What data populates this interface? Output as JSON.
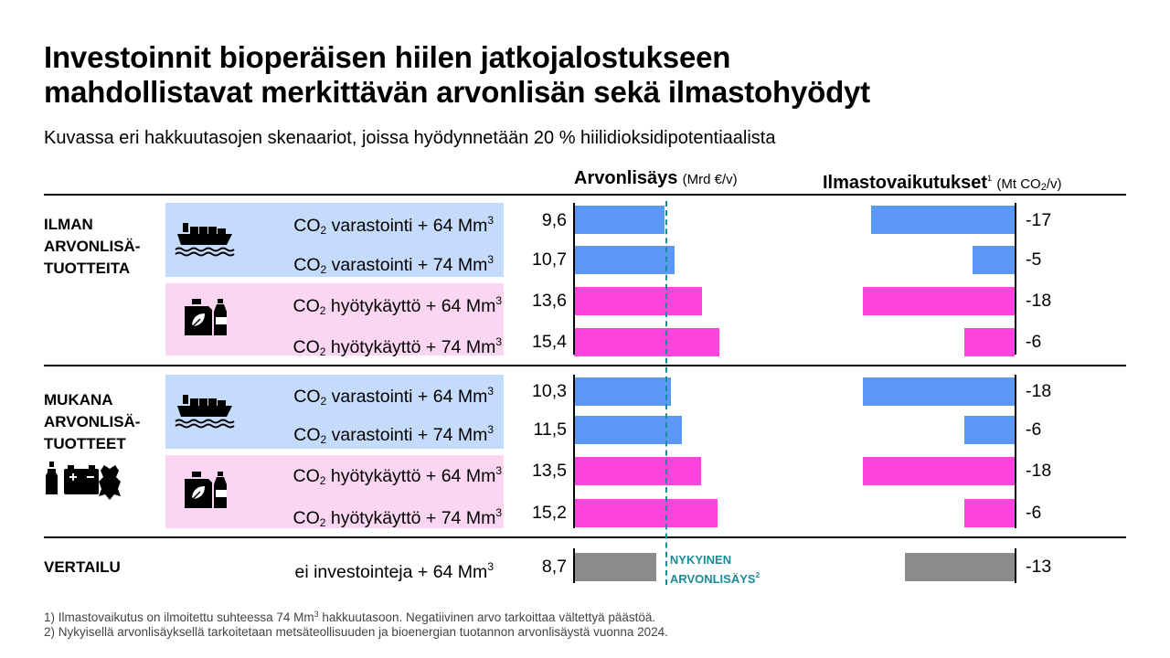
{
  "title_line1": "Investoinnit bioperäisen hiilen jatkojalostukseen",
  "title_line2": "mahdollistavat merkittävän arvonlisän sekä ilmastohyödyt",
  "subtitle": "Kuvassa eri hakkuutasojen skenaariot, joissa hyödynnetään 20 % hiilidioksidipotentiaalista",
  "headers": {
    "value_added": "Arvonlisäys",
    "value_added_unit": "(Mrd €/v)",
    "climate": "Ilmastovaikutukset",
    "climate_sup": "1",
    "climate_unit_pre": "(Mt CO",
    "climate_unit_sub": "2",
    "climate_unit_post": "/v)"
  },
  "groups": {
    "without_line1": "ILMAN",
    "without_line2": "ARVONLISÄ-",
    "without_line3": "TUOTTEITA",
    "with_line1": "MUKANA",
    "with_line2": "ARVONLISÄ-",
    "with_line3": "TUOTTEET",
    "comparison": "VERTAILU"
  },
  "label_parts": {
    "co": "CO",
    "sub2": "2",
    "storage_64": " varastointi + 64 Mm",
    "storage_74": " varastointi + 74 Mm",
    "util_64": " hyötykäyttö + 64 Mm",
    "util_74": " hyötykäyttö + 74 Mm",
    "sup3": "3",
    "no_invest": "ei investointeja + 64 Mm"
  },
  "reference": {
    "line1": "NYKYINEN",
    "line2": "ARVONLISÄYS",
    "sup": "2",
    "value": 9.7
  },
  "colors": {
    "storage": "#5b97f5",
    "utilization": "#ff44dd",
    "comparison": "#8c8c8c",
    "reference": "#1a8c99",
    "panel_storage": "#c5dbfb",
    "panel_utilization": "#fbd6f3"
  },
  "icons": [
    "cargo-ship-icon",
    "canister-and-bottle-icon",
    "bottles-battery-leather-icon"
  ],
  "footnotes": {
    "f1_pre": "1) Ilmastovaikutus on ilmoitettu suhteessa 74 Mm",
    "f1_sup": "3",
    "f1_post": " hakkuutasoon. Negatiivinen arvo tarkoittaa vältettyä päästöä.",
    "f2": "2) Nykyisellä arvonlisäyksellä tarkoitetaan metsäteollisuuden ja bioenergian tuotannon arvonlisäystä vuonna 2024."
  },
  "chart_data": {
    "type": "bar",
    "title": "Investoinnit bioperäisen hiilen jatkojalostukseen mahdollistavat merkittävän arvonlisän sekä ilmastohyödyt",
    "categories": [
      "ILMAN ARVONLISÄTUOTTEITA – CO2 varastointi + 64 Mm3",
      "ILMAN ARVONLISÄTUOTTEITA – CO2 varastointi + 74 Mm3",
      "ILMAN ARVONLISÄTUOTTEITA – CO2 hyötykäyttö + 64 Mm3",
      "ILMAN ARVONLISÄTUOTTEITA – CO2 hyötykäyttö + 74 Mm3",
      "MUKANA ARVONLISÄTUOTTEET – CO2 varastointi + 64 Mm3",
      "MUKANA ARVONLISÄTUOTTEET – CO2 varastointi + 74 Mm3",
      "MUKANA ARVONLISÄTUOTTEET – CO2 hyötykäyttö + 64 Mm3",
      "MUKANA ARVONLISÄTUOTTEET – CO2 hyötykäyttö + 74 Mm3",
      "VERTAILU – ei investointeja + 64 Mm3"
    ],
    "series": [
      {
        "name": "Arvonlisäys (Mrd €/v)",
        "values": [
          9.6,
          10.7,
          13.6,
          15.4,
          10.3,
          11.5,
          13.5,
          15.2,
          8.7
        ]
      },
      {
        "name": "Ilmastovaikutukset (Mt CO2/v)",
        "values": [
          -17,
          -5,
          -18,
          -6,
          -18,
          -6,
          -18,
          -6,
          -13
        ]
      }
    ],
    "value_labels_left": [
      "9,6",
      "10,7",
      "13,6",
      "15,4",
      "10,3",
      "11,5",
      "13,5",
      "15,2",
      "8,7"
    ],
    "value_labels_right": [
      "-17",
      "-5",
      "-18",
      "-6",
      "-18",
      "-6",
      "-18",
      "-6",
      "-13"
    ],
    "bar_kind": [
      "storage",
      "storage",
      "utilization",
      "utilization",
      "storage",
      "storage",
      "utilization",
      "utilization",
      "comparison"
    ],
    "reference_line": {
      "series": "Arvonlisäys (Mrd €/v)",
      "value": 9.7,
      "label": "NYKYINEN ARVONLISÄYS"
    },
    "grid": false,
    "legend": "none"
  }
}
